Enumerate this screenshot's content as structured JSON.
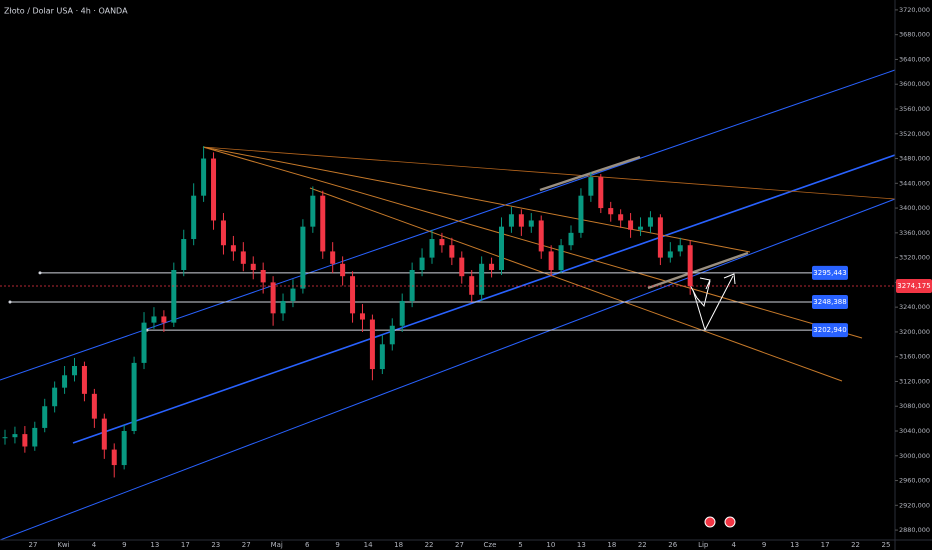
{
  "chart_data": {
    "type": "candlestick",
    "title": "Złoto / Dolar USA · 4h · OANDA",
    "categories": [
      "27",
      "Kwi",
      "4",
      "9",
      "13",
      "17",
      "23",
      "27",
      "Maj",
      "6",
      "9",
      "14",
      "18",
      "22",
      "27",
      "Cze",
      "5",
      "10",
      "13",
      "18",
      "22",
      "26",
      "Lip",
      "4",
      "9",
      "13",
      "17",
      "22",
      "25"
    ],
    "close": [
      3030,
      3035,
      3015,
      3045,
      3080,
      3110,
      3130,
      3145,
      3100,
      3060,
      3010,
      2985,
      3040,
      3150,
      3215,
      3225,
      3215,
      3300,
      3350,
      3420,
      3480,
      3380,
      3340,
      3330,
      3310,
      3300,
      3280,
      3230,
      3250,
      3270,
      3370,
      3420,
      3330,
      3310,
      3290,
      3230,
      3220,
      3140,
      3180,
      3210,
      3250,
      3300,
      3320,
      3350,
      3340,
      3320,
      3290,
      3260,
      3310,
      3300,
      3370,
      3390,
      3370,
      3380,
      3330,
      3300,
      3340,
      3360,
      3420,
      3450,
      3400,
      3390,
      3380,
      3365,
      3370,
      3385,
      3320,
      3330,
      3340,
      3274
    ],
    "high": [
      3042,
      3047,
      3048,
      3055,
      3092,
      3120,
      3145,
      3158,
      3152,
      3108,
      3068,
      3020,
      3050,
      3160,
      3232,
      3240,
      3235,
      3312,
      3365,
      3440,
      3500,
      3490,
      3392,
      3355,
      3345,
      3322,
      3312,
      3290,
      3262,
      3285,
      3382,
      3435,
      3428,
      3345,
      3322,
      3298,
      3245,
      3228,
      3195,
      3222,
      3262,
      3312,
      3335,
      3365,
      3360,
      3352,
      3330,
      3300,
      3322,
      3320,
      3385,
      3402,
      3398,
      3392,
      3388,
      3340,
      3350,
      3372,
      3432,
      3458,
      3455,
      3410,
      3398,
      3392,
      3385,
      3395,
      3390,
      3345,
      3352,
      3348
    ],
    "low": [
      3018,
      3020,
      3005,
      3008,
      3038,
      3070,
      3100,
      3120,
      3088,
      3045,
      2995,
      2965,
      2978,
      3035,
      3140,
      3205,
      3200,
      3208,
      3290,
      3340,
      3410,
      3365,
      3325,
      3315,
      3298,
      3285,
      3262,
      3210,
      3218,
      3240,
      3262,
      3360,
      3318,
      3295,
      3275,
      3215,
      3200,
      3122,
      3132,
      3170,
      3200,
      3240,
      3290,
      3310,
      3328,
      3308,
      3278,
      3248,
      3250,
      3288,
      3292,
      3360,
      3355,
      3360,
      3318,
      3290,
      3295,
      3332,
      3352,
      3410,
      3392,
      3378,
      3368,
      3352,
      3355,
      3360,
      3308,
      3312,
      3322,
      3260
    ],
    "up_color": "#089981",
    "down_color": "#f23645",
    "ylim": [
      2864,
      3736
    ],
    "yticks": [
      {
        "value": 2880,
        "label": "2880,000"
      },
      {
        "value": 2920,
        "label": "2920,000"
      },
      {
        "value": 2960,
        "label": "2960,000"
      },
      {
        "value": 3000,
        "label": "3000,000"
      },
      {
        "value": 3040,
        "label": "3040,000"
      },
      {
        "value": 3080,
        "label": "3080,000"
      },
      {
        "value": 3120,
        "label": "3120,000"
      },
      {
        "value": 3160,
        "label": "3160,000"
      },
      {
        "value": 3200,
        "label": "3200,000"
      },
      {
        "value": 3240,
        "label": "3240,000"
      },
      {
        "value": 3280,
        "label": "3280,000"
      },
      {
        "value": 3320,
        "label": "3320,000"
      },
      {
        "value": 3360,
        "label": "3360,000"
      },
      {
        "value": 3400,
        "label": "3400,000"
      },
      {
        "value": 3440,
        "label": "3440,000"
      },
      {
        "value": 3480,
        "label": "3480,000"
      },
      {
        "value": 3520,
        "label": "3520,000"
      },
      {
        "value": 3560,
        "label": "3560,000"
      },
      {
        "value": 3600,
        "label": "3600,000"
      },
      {
        "value": 3640,
        "label": "3640,000"
      },
      {
        "value": 3680,
        "label": "3680,000"
      },
      {
        "value": 3720,
        "label": "3720,000"
      }
    ],
    "levels": [
      {
        "value": 3295.443,
        "label": "3295,443"
      },
      {
        "value": 3248.388,
        "label": "3248,388"
      },
      {
        "value": 3202.94,
        "label": "3202,940"
      }
    ],
    "last_price": {
      "value": 3274.175,
      "label": "3274,175"
    }
  }
}
